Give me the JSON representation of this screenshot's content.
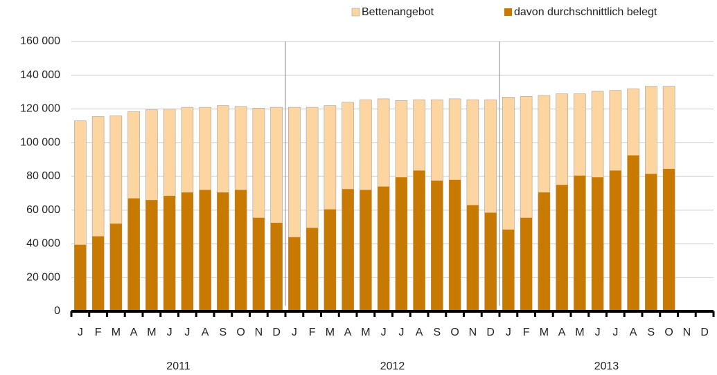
{
  "chart_data": {
    "type": "bar",
    "categories": [
      "J",
      "F",
      "M",
      "A",
      "M",
      "J",
      "J",
      "A",
      "S",
      "O",
      "N",
      "D",
      "J",
      "F",
      "M",
      "A",
      "M",
      "J",
      "J",
      "A",
      "S",
      "O",
      "N",
      "D",
      "J",
      "F",
      "M",
      "A",
      "M",
      "J",
      "J",
      "A",
      "S",
      "O",
      "N",
      "D"
    ],
    "years": [
      "2011",
      "2012",
      "2013"
    ],
    "series": [
      {
        "name": "Bettenangebot",
        "color": "#fcd5a0",
        "values": [
          113000,
          115500,
          116000,
          118500,
          119500,
          120000,
          121000,
          121000,
          122000,
          121500,
          120500,
          121000,
          121000,
          121000,
          122000,
          124000,
          125500,
          126000,
          125000,
          125500,
          125500,
          126000,
          125500,
          125500,
          127000,
          127500,
          128000,
          129000,
          129000,
          130500,
          131000,
          132000,
          133500,
          133500,
          null,
          null
        ]
      },
      {
        "name": "davon durchschnittlich belegt",
        "color": "#c87a00",
        "values": [
          39500,
          44500,
          52000,
          67000,
          66000,
          68500,
          70500,
          72000,
          70500,
          72000,
          55500,
          52500,
          44000,
          49500,
          60500,
          72500,
          72000,
          74000,
          79500,
          83500,
          77500,
          78000,
          63000,
          58500,
          48500,
          55500,
          70500,
          75000,
          80500,
          79500,
          83500,
          92500,
          81500,
          84500,
          null,
          null
        ]
      }
    ],
    "ylim": [
      0,
      160000
    ],
    "yticks": [
      0,
      {
        "value": 20000,
        "label": "20 000"
      },
      {
        "value": 40000,
        "label": "40 000"
      },
      {
        "value": 60000,
        "label": "60 000"
      },
      {
        "value": 80000,
        "label": "80 000"
      },
      {
        "value": 100000,
        "label": "100 000"
      },
      {
        "value": 120000,
        "label": "120 000"
      },
      {
        "value": 140000,
        "label": "140 000"
      },
      {
        "value": 160000,
        "label": "160 000"
      }
    ],
    "grid": true
  }
}
